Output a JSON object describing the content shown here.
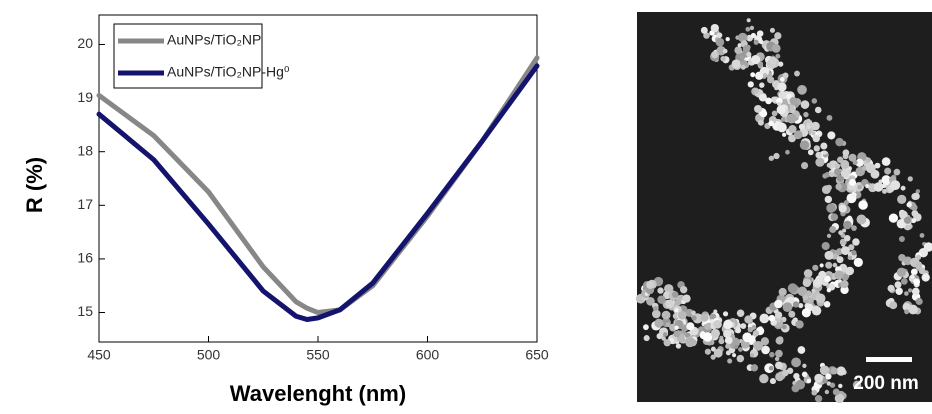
{
  "chart_data": {
    "type": "line",
    "x_label": "Wavelenght (nm)",
    "y_label": "R (%)",
    "x": [
      450,
      475,
      500,
      525,
      540,
      545,
      550,
      560,
      575,
      600,
      625,
      650
    ],
    "series": [
      {
        "name": "AuNPs/TiO₂NP",
        "color": "#878787",
        "values": [
          19.05,
          18.3,
          17.25,
          15.85,
          15.2,
          15.08,
          15.0,
          15.05,
          15.5,
          16.8,
          18.2,
          19.75
        ]
      },
      {
        "name": "AuNPs/TiO₂NP-Hg⁰",
        "color": "#14146e",
        "values": [
          18.7,
          17.85,
          16.65,
          15.4,
          14.93,
          14.87,
          14.9,
          15.05,
          15.55,
          16.85,
          18.2,
          19.6
        ]
      }
    ],
    "xlim": [
      450,
      650
    ],
    "xticks": [
      450,
      500,
      550,
      600,
      650
    ],
    "ylim": [
      14.45,
      20.55
    ],
    "yticks": [
      15,
      16,
      17,
      18,
      19,
      20
    ],
    "legend": "upper-left"
  },
  "scale_bar_label": "200 nm"
}
